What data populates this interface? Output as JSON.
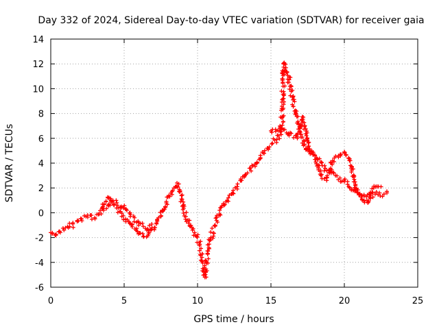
{
  "chart_data": {
    "type": "scatter",
    "title": "Day 332 of 2024, Sidereal Day-to-day VTEC variation (SDTVAR) for receiver gaia",
    "xlabel": "GPS time / hours",
    "ylabel": "SDTVAR / TECUs",
    "xlim": [
      0,
      25
    ],
    "ylim": [
      -6,
      14
    ],
    "xticks": [
      "0",
      "5",
      "10",
      "15",
      "20",
      "25"
    ],
    "yticks": [
      "-6",
      "-4",
      "-2",
      "0",
      "2",
      "4",
      "6",
      "8",
      "10",
      "12",
      "14"
    ],
    "grid": true,
    "marker": "+",
    "series": [
      {
        "name": "SDTVAR",
        "color": "#ff0000",
        "points": [
          [
            0.0,
            -1.6
          ],
          [
            0.3,
            -1.8
          ],
          [
            0.6,
            -1.5
          ],
          [
            0.9,
            -1.4
          ],
          [
            1.2,
            -1.2
          ],
          [
            1.5,
            -0.9
          ],
          [
            1.8,
            -0.7
          ],
          [
            2.1,
            -0.5
          ],
          [
            2.4,
            -0.3
          ],
          [
            2.7,
            -0.2
          ],
          [
            3.0,
            -0.4
          ],
          [
            3.3,
            -0.1
          ],
          [
            3.6,
            0.2
          ],
          [
            3.9,
            0.6
          ],
          [
            4.2,
            0.9
          ],
          [
            4.5,
            0.8
          ],
          [
            4.8,
            0.5
          ],
          [
            5.1,
            0.3
          ],
          [
            5.4,
            0.0
          ],
          [
            5.7,
            -0.4
          ],
          [
            6.0,
            -0.8
          ],
          [
            6.3,
            -1.1
          ],
          [
            6.6,
            -1.3
          ],
          [
            6.9,
            -1.2
          ],
          [
            7.2,
            -0.9
          ],
          [
            7.5,
            -0.3
          ],
          [
            7.8,
            0.5
          ],
          [
            8.1,
            1.3
          ],
          [
            8.4,
            2.0
          ],
          [
            8.6,
            2.4
          ],
          [
            8.8,
            1.7
          ],
          [
            9.0,
            0.6
          ],
          [
            9.2,
            -0.3
          ],
          [
            9.5,
            -1.1
          ],
          [
            9.8,
            -1.6
          ],
          [
            10.1,
            -2.4
          ],
          [
            10.3,
            -3.6
          ],
          [
            10.5,
            -5.2
          ],
          [
            10.7,
            -3.3
          ],
          [
            10.9,
            -2.0
          ],
          [
            11.2,
            -1.0
          ],
          [
            11.5,
            -0.1
          ],
          [
            11.8,
            0.6
          ],
          [
            12.1,
            1.2
          ],
          [
            12.4,
            1.6
          ],
          [
            12.7,
            2.1
          ],
          [
            13.0,
            2.6
          ],
          [
            13.3,
            3.1
          ],
          [
            13.6,
            3.6
          ],
          [
            13.9,
            3.9
          ],
          [
            14.2,
            4.3
          ],
          [
            14.5,
            4.8
          ],
          [
            14.8,
            5.2
          ],
          [
            15.1,
            5.6
          ],
          [
            15.4,
            5.9
          ],
          [
            15.7,
            6.3
          ],
          [
            15.9,
            12.1
          ],
          [
            16.1,
            11.3
          ],
          [
            16.3,
            10.2
          ],
          [
            16.5,
            9.1
          ],
          [
            16.7,
            8.0
          ],
          [
            16.9,
            7.2
          ],
          [
            17.0,
            6.5
          ],
          [
            17.3,
            5.5
          ],
          [
            17.6,
            4.9
          ],
          [
            17.9,
            4.7
          ],
          [
            18.2,
            4.3
          ],
          [
            18.5,
            3.8
          ],
          [
            18.8,
            3.4
          ],
          [
            19.1,
            3.2
          ],
          [
            19.4,
            3.0
          ],
          [
            19.7,
            2.8
          ],
          [
            20.0,
            2.5
          ],
          [
            20.3,
            2.1
          ],
          [
            20.6,
            1.8
          ],
          [
            20.9,
            1.6
          ],
          [
            21.2,
            1.4
          ],
          [
            21.5,
            1.3
          ],
          [
            21.8,
            1.4
          ],
          [
            22.1,
            1.5
          ],
          [
            22.4,
            1.6
          ],
          [
            22.7,
            1.5
          ],
          [
            22.9,
            1.6
          ]
        ],
        "secondary_track": [
          [
            3.5,
            0.4
          ],
          [
            3.9,
            1.2
          ],
          [
            4.3,
            0.7
          ],
          [
            4.7,
            0.1
          ],
          [
            5.1,
            -0.5
          ],
          [
            5.5,
            -1.0
          ],
          [
            5.9,
            -1.5
          ],
          [
            6.3,
            -1.9
          ],
          [
            6.7,
            -1.6
          ],
          [
            7.1,
            -1.2
          ],
          [
            15.0,
            6.6
          ],
          [
            15.6,
            6.8
          ],
          [
            16.2,
            6.4
          ],
          [
            16.8,
            6.0
          ],
          [
            17.2,
            7.7
          ],
          [
            17.6,
            5.0
          ],
          [
            18.0,
            4.6
          ],
          [
            18.4,
            3.0
          ],
          [
            18.8,
            2.6
          ],
          [
            19.2,
            4.2
          ],
          [
            19.6,
            4.6
          ],
          [
            20.0,
            4.9
          ],
          [
            20.4,
            4.2
          ],
          [
            20.8,
            1.9
          ],
          [
            21.2,
            1.1
          ],
          [
            21.6,
            0.8
          ],
          [
            22.0,
            2.0
          ],
          [
            22.5,
            2.1
          ]
        ]
      }
    ]
  }
}
